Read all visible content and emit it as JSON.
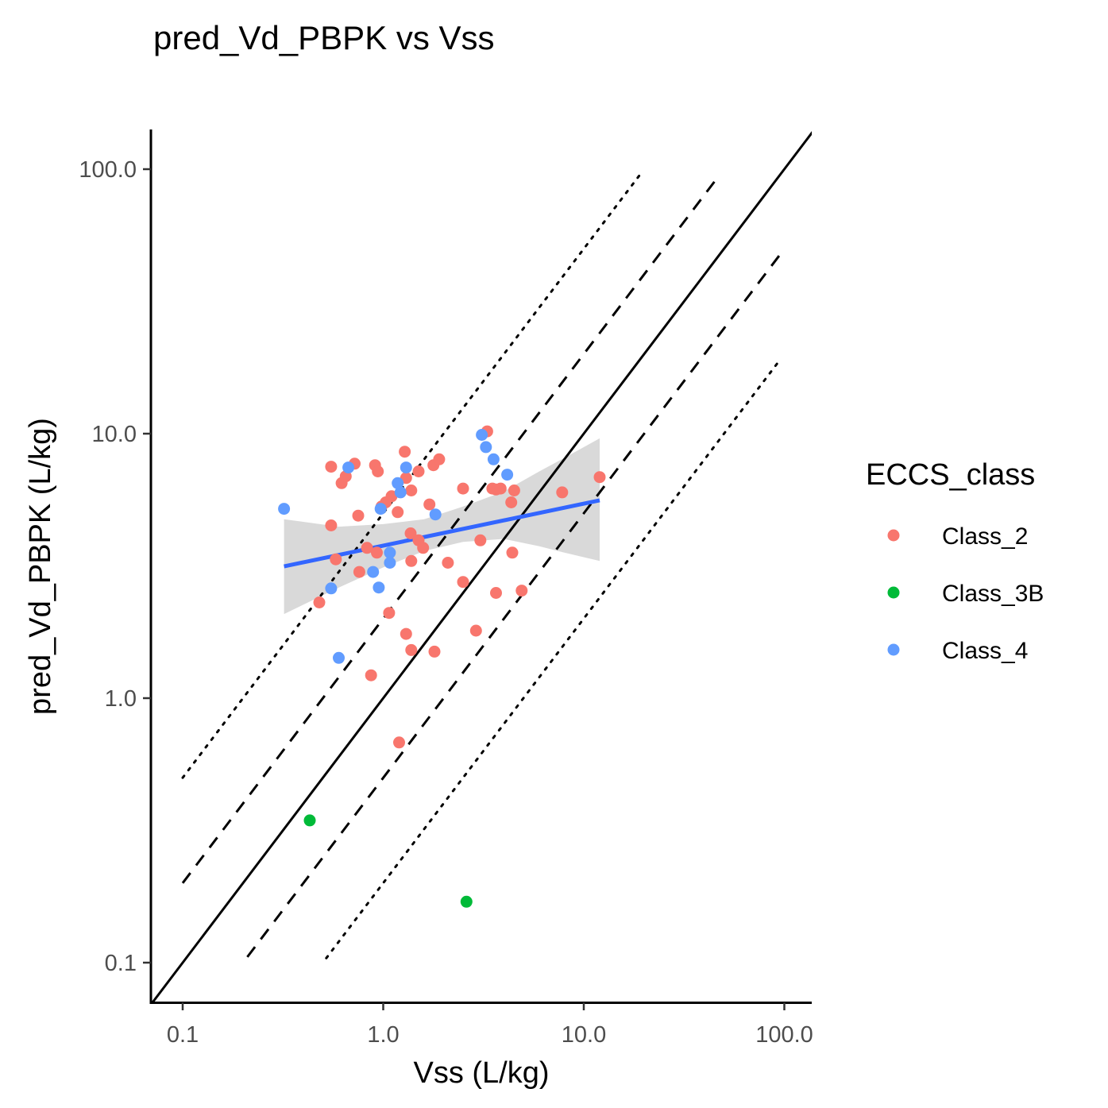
{
  "chart_data": {
    "type": "scatter",
    "title": "pred_Vd_PBPK vs Vss",
    "xlabel": "Vss (L/kg)",
    "ylabel": "pred_Vd_PBPK (L/kg)",
    "x_scale": "log10",
    "y_scale": "log10",
    "xlim": [
      0.07,
      140
    ],
    "ylim": [
      0.07,
      140
    ],
    "x_ticks": [
      0.1,
      1,
      10,
      100
    ],
    "x_tick_labels": [
      "0.1",
      "1.0",
      "10.0",
      "100.0"
    ],
    "y_ticks": [
      0.1,
      1,
      10,
      100
    ],
    "y_tick_labels": [
      "0.1",
      "1.0",
      "10.0",
      "100.0"
    ],
    "grid": false,
    "legend": {
      "title": "ECCS_class",
      "position": "right",
      "entries": [
        {
          "label": "Class_2",
          "color": "#F8766D"
        },
        {
          "label": "Class_3B",
          "color": "#00BA38"
        },
        {
          "label": "Class_4",
          "color": "#619CFF"
        }
      ]
    },
    "reference_lines": [
      {
        "style": "solid",
        "x": [
          0.07,
          140
        ],
        "y": [
          0.07,
          140
        ]
      },
      {
        "style": "dashed",
        "x": [
          0.1,
          45
        ],
        "y": [
          0.2,
          90
        ]
      },
      {
        "style": "dashed",
        "x": [
          0.21,
          95
        ],
        "y": [
          0.105,
          47.5
        ]
      },
      {
        "style": "dotted",
        "x": [
          0.1,
          19
        ],
        "y": [
          0.5,
          95
        ]
      },
      {
        "style": "dotted",
        "x": [
          0.52,
          95
        ],
        "y": [
          0.104,
          19
        ]
      }
    ],
    "smooth": {
      "method": "lm",
      "color": "#3366FF",
      "ribbon_color": "#D9D9D9",
      "x": [
        0.32,
        12
      ],
      "y": [
        3.15,
        5.6
      ],
      "ribbon_at_x": [
        0.32,
        0.6,
        1.0,
        1.6,
        2.5,
        4.0,
        6.0,
        8.0,
        12
      ],
      "ribbon_lower": [
        2.08,
        2.62,
        3.12,
        3.6,
        3.9,
        4.0,
        3.75,
        3.55,
        3.3
      ],
      "ribbon_upper": [
        4.75,
        4.45,
        4.55,
        4.75,
        5.3,
        6.05,
        7.2,
        8.1,
        9.6
      ]
    },
    "series": [
      {
        "name": "Class_2",
        "color": "#F8766D",
        "points": [
          {
            "x": 0.55,
            "y": 7.5
          },
          {
            "x": 0.55,
            "y": 4.5
          },
          {
            "x": 0.58,
            "y": 3.35
          },
          {
            "x": 0.62,
            "y": 6.5
          },
          {
            "x": 0.65,
            "y": 6.9
          },
          {
            "x": 0.72,
            "y": 7.7
          },
          {
            "x": 0.75,
            "y": 4.9
          },
          {
            "x": 0.76,
            "y": 3.0
          },
          {
            "x": 0.48,
            "y": 2.3
          },
          {
            "x": 0.83,
            "y": 3.7
          },
          {
            "x": 0.87,
            "y": 1.22
          },
          {
            "x": 0.91,
            "y": 7.6
          },
          {
            "x": 0.94,
            "y": 7.2
          },
          {
            "x": 0.93,
            "y": 3.55
          },
          {
            "x": 0.98,
            "y": 5.3
          },
          {
            "x": 1.03,
            "y": 5.5
          },
          {
            "x": 1.07,
            "y": 2.1
          },
          {
            "x": 1.1,
            "y": 5.8
          },
          {
            "x": 1.18,
            "y": 5.05
          },
          {
            "x": 1.2,
            "y": 0.68
          },
          {
            "x": 1.28,
            "y": 8.55
          },
          {
            "x": 1.3,
            "y": 6.8
          },
          {
            "x": 1.3,
            "y": 1.75
          },
          {
            "x": 1.38,
            "y": 6.1
          },
          {
            "x": 1.37,
            "y": 4.2
          },
          {
            "x": 1.38,
            "y": 3.3
          },
          {
            "x": 1.38,
            "y": 1.52
          },
          {
            "x": 1.5,
            "y": 7.2
          },
          {
            "x": 1.5,
            "y": 3.95
          },
          {
            "x": 1.58,
            "y": 3.7
          },
          {
            "x": 1.7,
            "y": 5.4
          },
          {
            "x": 1.78,
            "y": 7.6
          },
          {
            "x": 1.8,
            "y": 1.5
          },
          {
            "x": 1.9,
            "y": 8.0
          },
          {
            "x": 2.1,
            "y": 3.25
          },
          {
            "x": 2.5,
            "y": 6.2
          },
          {
            "x": 2.5,
            "y": 2.75
          },
          {
            "x": 2.9,
            "y": 1.8
          },
          {
            "x": 3.05,
            "y": 3.95
          },
          {
            "x": 3.3,
            "y": 10.2
          },
          {
            "x": 3.5,
            "y": 6.2
          },
          {
            "x": 3.65,
            "y": 6.15
          },
          {
            "x": 3.65,
            "y": 2.5
          },
          {
            "x": 3.85,
            "y": 6.2
          },
          {
            "x": 4.35,
            "y": 5.5
          },
          {
            "x": 4.4,
            "y": 3.55
          },
          {
            "x": 4.5,
            "y": 6.1
          },
          {
            "x": 4.9,
            "y": 2.55
          },
          {
            "x": 7.8,
            "y": 6.0
          },
          {
            "x": 12,
            "y": 6.85
          }
        ]
      },
      {
        "name": "Class_3B",
        "color": "#00BA38",
        "points": [
          {
            "x": 0.43,
            "y": 0.345
          },
          {
            "x": 2.6,
            "y": 0.17
          }
        ]
      },
      {
        "name": "Class_4",
        "color": "#619CFF",
        "points": [
          {
            "x": 0.32,
            "y": 5.2
          },
          {
            "x": 0.55,
            "y": 2.6
          },
          {
            "x": 0.6,
            "y": 1.42
          },
          {
            "x": 0.67,
            "y": 7.45
          },
          {
            "x": 0.89,
            "y": 3.0
          },
          {
            "x": 0.95,
            "y": 2.62
          },
          {
            "x": 0.97,
            "y": 5.2
          },
          {
            "x": 1.08,
            "y": 3.55
          },
          {
            "x": 1.08,
            "y": 3.25
          },
          {
            "x": 1.18,
            "y": 6.5
          },
          {
            "x": 1.22,
            "y": 6.0
          },
          {
            "x": 1.3,
            "y": 7.45
          },
          {
            "x": 1.82,
            "y": 4.95
          },
          {
            "x": 3.1,
            "y": 9.9
          },
          {
            "x": 3.25,
            "y": 8.9
          },
          {
            "x": 3.55,
            "y": 8.0
          },
          {
            "x": 4.15,
            "y": 7.0
          }
        ]
      }
    ]
  }
}
